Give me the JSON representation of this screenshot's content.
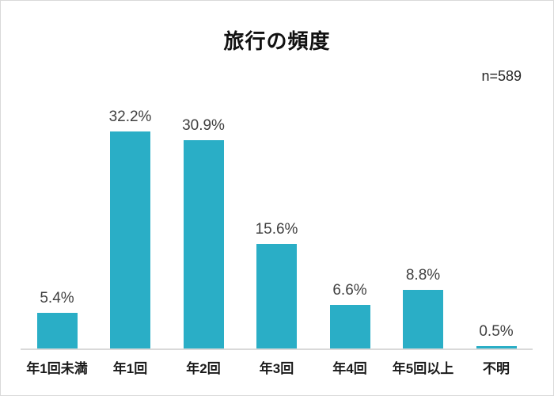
{
  "chart": {
    "title": "旅行の頻度",
    "n_label": "n=589"
  },
  "chart_data": {
    "type": "bar",
    "title": "旅行の頻度",
    "annotation": "n=589",
    "categories": [
      "年1回未満",
      "年1回",
      "年2回",
      "年3回",
      "年4回",
      "年5回以上",
      "不明"
    ],
    "values": [
      5.4,
      32.2,
      30.9,
      15.6,
      6.6,
      8.8,
      0.5
    ],
    "value_labels": [
      "5.4%",
      "32.2%",
      "30.9%",
      "15.6%",
      "6.6%",
      "8.8%",
      "0.5%"
    ],
    "xlabel": "",
    "ylabel": "",
    "unit": "%",
    "ylim": [
      0,
      40
    ],
    "grid": false,
    "legend": "none",
    "bar_color": "#2aaec6",
    "axis_color": "#d9d9d9",
    "value_label_color": "#404040",
    "category_label_color": "#1a1a1a"
  }
}
